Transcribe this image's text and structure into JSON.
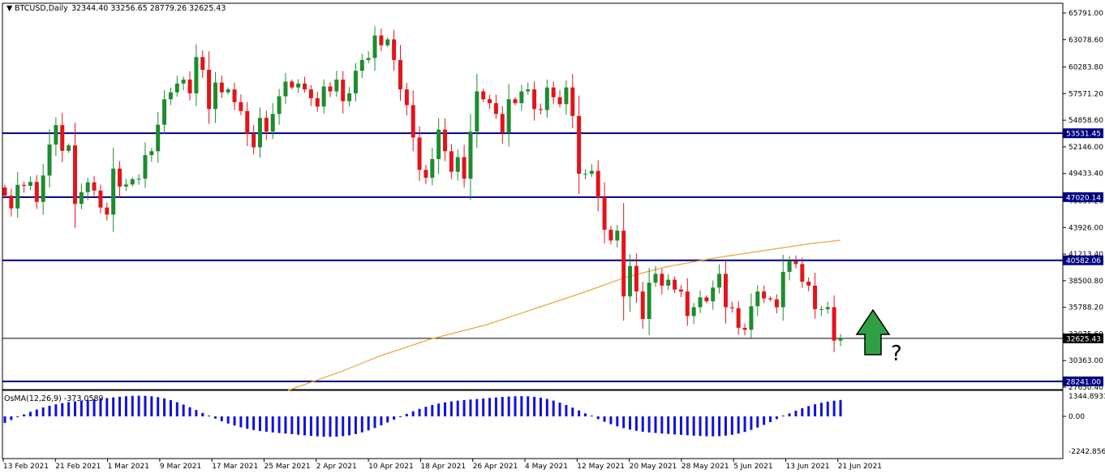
{
  "header": {
    "symbol_arrow": "▼",
    "symbol": "BTCUSD,Daily",
    "ohlc": "32344.40 33256.65 28779.26 32625.43"
  },
  "price_axis": [
    "65791.00",
    "63078.60",
    "60283.80",
    "57571.20",
    "54858.60",
    "52146.00",
    "49433.40",
    "46639.20",
    "43926.00",
    "41213.40",
    "38500.80",
    "35788.20",
    "33075.60",
    "30363.00",
    "27650.40"
  ],
  "level_tags": [
    {
      "name": "level-53531",
      "text": "53531.45",
      "price": 53531.45,
      "color": "#000080"
    },
    {
      "name": "level-47020",
      "text": "47020.14",
      "price": 47020.14,
      "color": "#000080"
    },
    {
      "name": "level-40582",
      "text": "40582.06",
      "price": 40582.06,
      "color": "#000080"
    },
    {
      "name": "level-32625",
      "text": "32625.43",
      "price": 32625.43,
      "color": "#000000"
    },
    {
      "name": "level-28241",
      "text": "28241.00",
      "price": 28241.0,
      "color": "#000080"
    }
  ],
  "indicator": {
    "label": "OsMA(12,26,9) -373.0589",
    "axis": [
      "1344.8931",
      "0.00",
      "-2242.8562"
    ]
  },
  "date_axis": [
    "13 Feb 2021",
    "21 Feb 2021",
    "1 Mar 2021",
    "9 Mar 2021",
    "17 Mar 2021",
    "25 Mar 2021",
    "2 Apr 2021",
    "10 Apr 2021",
    "18 Apr 2021",
    "26 Apr 2021",
    "4 May 2021",
    "12 May 2021",
    "20 May 2021",
    "28 May 2021",
    "5 Jun 2021",
    "13 Jun 2021",
    "21 Jun 2021"
  ],
  "annotation": {
    "question": "?",
    "arrow_color": "#2ea043"
  },
  "colors": {
    "bull": "#1e8c2e",
    "bear": "#e3141b",
    "level": "#000080",
    "ma": "#e8a83a",
    "osma": "#1010e0"
  },
  "chart_data": {
    "type": "candlestick",
    "closes": [
      47180,
      45870,
      48270,
      48170,
      48570,
      46530,
      49220,
      52380,
      54360,
      51740,
      52290,
      46330,
      47530,
      48530,
      47690,
      45960,
      45240,
      49930,
      48100,
      48310,
      48850,
      48900,
      51300,
      51700,
      54400,
      57000,
      57700,
      58600,
      59000,
      57600,
      61300,
      60000,
      56000,
      58700,
      57700,
      58000,
      56700,
      55800,
      53500,
      52100,
      55100,
      53700,
      55500,
      57300,
      58800,
      58200,
      58600,
      58000,
      57100,
      56250,
      58300,
      57800,
      59000,
      56800,
      57600,
      59900,
      61000,
      61200,
      63500,
      62500,
      63100,
      61000,
      58000,
      56400,
      53100,
      49800,
      49000,
      50900,
      53900,
      51700,
      49600,
      51100,
      48900,
      53700,
      57800,
      57000,
      56600,
      55500,
      53600,
      57000,
      56600,
      57800,
      58000,
      56000,
      55900,
      58200,
      57200,
      56500,
      58200,
      55300,
      49400,
      49400,
      49700,
      47000,
      43700,
      42600,
      43600,
      36900,
      40000,
      37400,
      34600,
      38300,
      39200,
      38000,
      38600,
      37600,
      37400,
      34900,
      35800,
      36800,
      36400,
      37800,
      39200,
      35800,
      35700,
      33700,
      33500,
      35900,
      37400,
      36700,
      36600,
      35800,
      39400,
      40500,
      40200,
      38400,
      38000,
      35600,
      35600,
      35800,
      32400,
      32625
    ]
  }
}
